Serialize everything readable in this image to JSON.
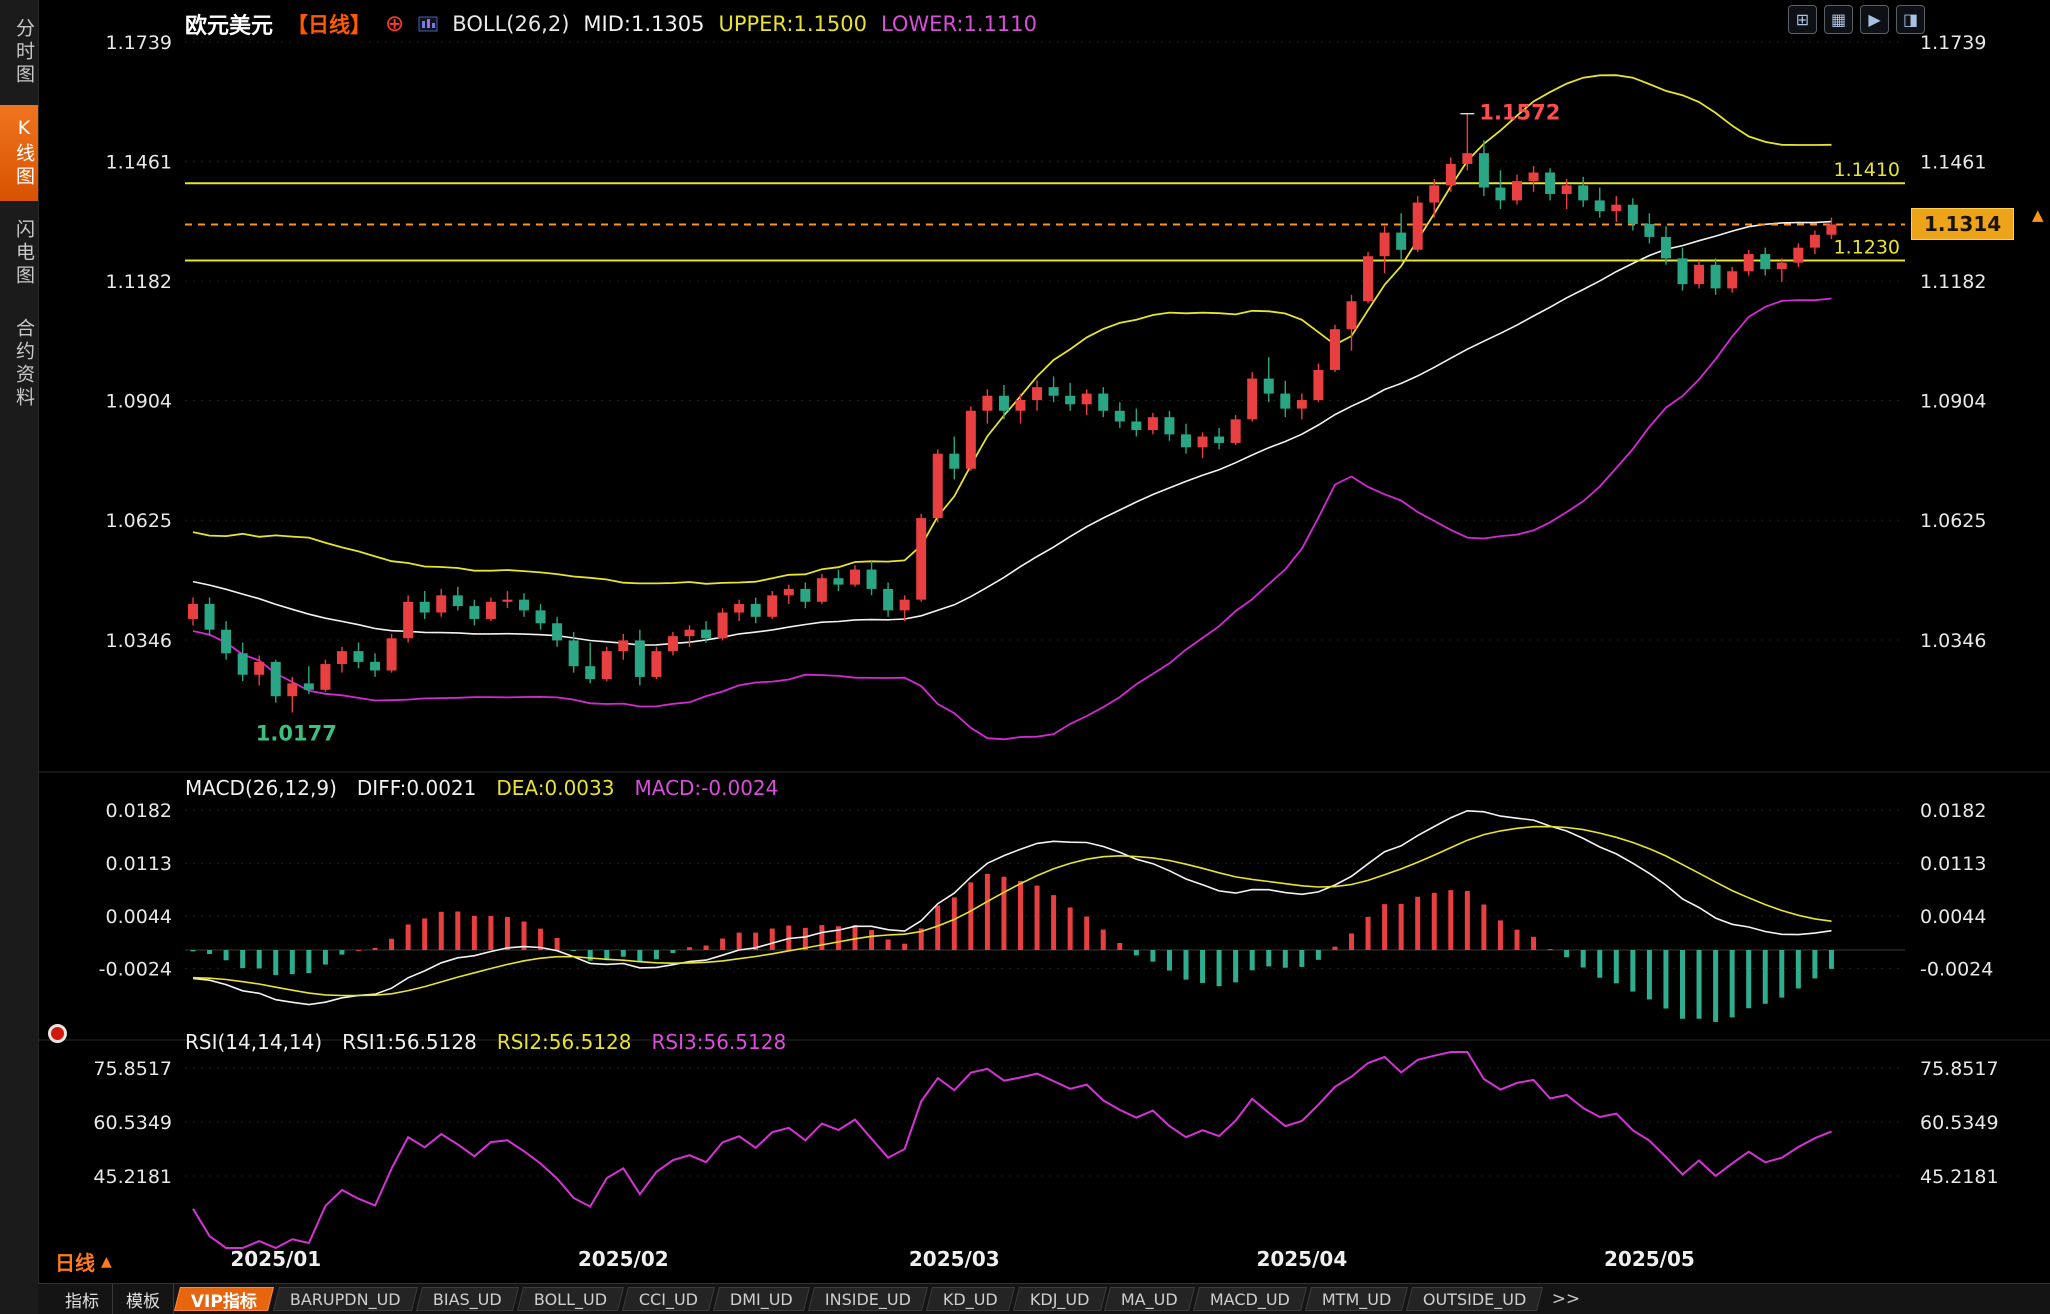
{
  "colors": {
    "background": "#000000",
    "up": "#e84040",
    "down": "#2aa685",
    "boll_mid": "#f2f2f2",
    "boll_upper": "#e8e32e",
    "boll_lower": "#d42ad4",
    "axis_text": "#e8e8e8",
    "orange": "#ff9518",
    "yellow": "#e8e32e",
    "magenta": "#d633d6",
    "macd_pos": "#e84040",
    "macd_neg": "#2fae8f",
    "diff_line": "#f2f2f2",
    "dea_line": "#e8e32e",
    "rsi_line": "#d633d6",
    "accent_orange": "#e8650f"
  },
  "sidebar": {
    "items": [
      {
        "label": "分时图",
        "selected": false
      },
      {
        "label": "K线图",
        "selected": true
      },
      {
        "label": "闪电图",
        "selected": false
      },
      {
        "label": "合约资料",
        "selected": false
      }
    ]
  },
  "header": {
    "symbol": "欧元美元",
    "period_tag": "【日线】",
    "add_icon": "⊕",
    "indicator_title": "BOLL(26,2)",
    "mid": "MID:1.1305",
    "upper": "UPPER:1.1500",
    "lower": "LOWER:1.1110"
  },
  "toolbar": {
    "icons": [
      {
        "name": "quad-view-icon",
        "glyph": "⊞"
      },
      {
        "name": "grid-view-icon",
        "glyph": "▦"
      },
      {
        "name": "playback-icon",
        "glyph": "▶"
      },
      {
        "name": "split-view-icon",
        "glyph": "◨"
      }
    ]
  },
  "price_tag": {
    "value": "1.1314"
  },
  "edge_arrow": "▲",
  "period_selector": {
    "label": "日线",
    "arrow": "▲"
  },
  "tabbar": {
    "tabs": [
      {
        "label": "指标",
        "type": "plain"
      },
      {
        "label": "模板",
        "type": "plain"
      },
      {
        "label": "VIP指标",
        "type": "selected"
      },
      {
        "label": "BARUPDN_UD",
        "type": "ind"
      },
      {
        "label": "BIAS_UD",
        "type": "ind"
      },
      {
        "label": "BOLL_UD",
        "type": "ind"
      },
      {
        "label": "CCI_UD",
        "type": "ind"
      },
      {
        "label": "DMI_UD",
        "type": "ind"
      },
      {
        "label": "INSIDE_UD",
        "type": "ind"
      },
      {
        "label": "KD_UD",
        "type": "ind"
      },
      {
        "label": "KDJ_UD",
        "type": "ind"
      },
      {
        "label": "MA_UD",
        "type": "ind"
      },
      {
        "label": "MACD_UD",
        "type": "ind"
      },
      {
        "label": "MTM_UD",
        "type": "ind"
      },
      {
        "label": "OUTSIDE_UD",
        "type": "ind"
      },
      {
        "label": ">>",
        "type": "more"
      }
    ]
  },
  "chart_data": [
    {
      "type": "candlestick",
      "title": "欧元美元 日线 (EUR/USD Daily)",
      "overlay": "BOLL(26,2)",
      "legend": {
        "boll": "BOLL(26,2)",
        "mid": "MID:1.1305",
        "upper": "UPPER:1.1500",
        "lower": "LOWER:1.1110"
      },
      "y_ticks": [
        1.1739,
        1.1461,
        1.1182,
        1.0904,
        1.0625,
        1.0346
      ],
      "x_ticks": [
        {
          "label": "2025/01",
          "index": 5
        },
        {
          "label": "2025/02",
          "index": 26
        },
        {
          "label": "2025/03",
          "index": 46
        },
        {
          "label": "2025/04",
          "index": 67
        },
        {
          "label": "2025/05",
          "index": 88
        }
      ],
      "h_lines": [
        {
          "value": 1.141,
          "label": "1.1410"
        },
        {
          "value": 1.123,
          "label": "1.1230"
        }
      ],
      "current_price": {
        "value": 1.1314,
        "label": "1.1314"
      },
      "annotations": [
        {
          "text": "1.1572",
          "index": 77,
          "price": 1.1572,
          "color": "#ff4d4d",
          "placement": "right"
        },
        {
          "text": "1.0177",
          "index": 6,
          "price": 1.0177,
          "color": "#3dbf7e",
          "placement": "below"
        }
      ],
      "boll": {
        "period": 26,
        "mult": 2
      },
      "prior_closes": [
        1.0585,
        1.057,
        1.0555,
        1.0575,
        1.056,
        1.054,
        1.0525,
        1.0535,
        1.051,
        1.0495,
        1.0505,
        1.0485,
        1.047,
        1.048,
        1.046,
        1.0445,
        1.0455,
        1.0435,
        1.0425,
        1.044,
        1.042,
        1.041,
        1.0425,
        1.0405,
        1.0395
      ],
      "candles": [
        [
          1.0395,
          1.0445,
          1.038,
          1.043
        ],
        [
          1.043,
          1.0445,
          1.0355,
          1.037
        ],
        [
          1.037,
          1.039,
          1.03,
          1.0315
        ],
        [
          1.0315,
          1.034,
          1.025,
          1.0265
        ],
        [
          1.0265,
          1.031,
          1.024,
          1.0295
        ],
        [
          1.0295,
          1.03,
          1.02,
          1.0215
        ],
        [
          1.0215,
          1.026,
          1.0177,
          1.0245
        ],
        [
          1.0245,
          1.0285,
          1.022,
          1.023
        ],
        [
          1.023,
          1.03,
          1.0225,
          1.029
        ],
        [
          1.029,
          1.033,
          1.027,
          1.032
        ],
        [
          1.032,
          1.034,
          1.028,
          1.0295
        ],
        [
          1.0295,
          1.0315,
          1.026,
          1.0275
        ],
        [
          1.0275,
          1.036,
          1.027,
          1.035
        ],
        [
          1.035,
          1.045,
          1.034,
          1.0435
        ],
        [
          1.0435,
          1.046,
          1.0395,
          1.041
        ],
        [
          1.041,
          1.0465,
          1.04,
          1.045
        ],
        [
          1.045,
          1.047,
          1.0415,
          1.0425
        ],
        [
          1.0425,
          1.044,
          1.038,
          1.0395
        ],
        [
          1.0395,
          1.0445,
          1.039,
          1.0435
        ],
        [
          1.0435,
          1.046,
          1.042,
          1.044
        ],
        [
          1.044,
          1.0455,
          1.04,
          1.0415
        ],
        [
          1.0415,
          1.043,
          1.037,
          1.0385
        ],
        [
          1.0385,
          1.04,
          1.033,
          1.0345
        ],
        [
          1.0345,
          1.0365,
          1.027,
          1.0285
        ],
        [
          1.0285,
          1.034,
          1.0245,
          1.0255
        ],
        [
          1.0255,
          1.033,
          1.025,
          1.032
        ],
        [
          1.032,
          1.036,
          1.03,
          1.0345
        ],
        [
          1.0345,
          1.037,
          1.024,
          1.026
        ],
        [
          1.026,
          1.033,
          1.0255,
          1.032
        ],
        [
          1.032,
          1.0365,
          1.031,
          1.0355
        ],
        [
          1.0355,
          1.038,
          1.033,
          1.037
        ],
        [
          1.037,
          1.039,
          1.034,
          1.035
        ],
        [
          1.035,
          1.042,
          1.0345,
          1.041
        ],
        [
          1.041,
          1.044,
          1.039,
          1.043
        ],
        [
          1.043,
          1.0445,
          1.0385,
          1.04
        ],
        [
          1.04,
          1.046,
          1.0395,
          1.045
        ],
        [
          1.045,
          1.0475,
          1.043,
          1.0465
        ],
        [
          1.0465,
          1.048,
          1.042,
          1.0435
        ],
        [
          1.0435,
          1.05,
          1.043,
          1.049
        ],
        [
          1.049,
          1.051,
          1.046,
          1.0475
        ],
        [
          1.0475,
          1.052,
          1.047,
          1.051
        ],
        [
          1.051,
          1.053,
          1.045,
          1.0465
        ],
        [
          1.0465,
          1.048,
          1.04,
          1.0415
        ],
        [
          1.0415,
          1.045,
          1.039,
          1.044
        ],
        [
          1.044,
          1.064,
          1.0435,
          1.063
        ],
        [
          1.063,
          1.079,
          1.062,
          1.078
        ],
        [
          1.078,
          1.082,
          1.072,
          1.0745
        ],
        [
          1.0745,
          1.089,
          1.074,
          1.088
        ],
        [
          1.088,
          1.093,
          1.085,
          1.0915
        ],
        [
          1.0915,
          1.094,
          1.086,
          1.088
        ],
        [
          1.088,
          1.092,
          1.085,
          1.0905
        ],
        [
          1.0905,
          1.095,
          1.088,
          1.0935
        ],
        [
          1.0935,
          1.096,
          1.09,
          1.0915
        ],
        [
          1.0915,
          1.0945,
          1.088,
          1.0895
        ],
        [
          1.0895,
          1.093,
          1.087,
          1.092
        ],
        [
          1.092,
          1.0935,
          1.0865,
          1.088
        ],
        [
          1.088,
          1.09,
          1.084,
          1.0855
        ],
        [
          1.0855,
          1.0885,
          1.082,
          1.0835
        ],
        [
          1.0835,
          1.0875,
          1.0825,
          1.0865
        ],
        [
          1.0865,
          1.088,
          1.081,
          1.0825
        ],
        [
          1.0825,
          1.085,
          1.078,
          1.0795
        ],
        [
          1.0795,
          1.083,
          1.077,
          1.082
        ],
        [
          1.082,
          1.084,
          1.079,
          1.0805
        ],
        [
          1.0805,
          1.087,
          1.08,
          1.086
        ],
        [
          1.086,
          1.097,
          1.0855,
          1.0955
        ],
        [
          1.0955,
          1.1005,
          1.09,
          1.092
        ],
        [
          1.092,
          1.095,
          1.0865,
          1.0885
        ],
        [
          1.0885,
          1.092,
          1.086,
          1.0905
        ],
        [
          1.0905,
          1.099,
          1.09,
          1.0975
        ],
        [
          1.0975,
          1.108,
          1.097,
          1.107
        ],
        [
          1.107,
          1.115,
          1.102,
          1.1135
        ],
        [
          1.1135,
          1.125,
          1.113,
          1.124
        ],
        [
          1.124,
          1.131,
          1.12,
          1.1295
        ],
        [
          1.1295,
          1.134,
          1.123,
          1.1255
        ],
        [
          1.1255,
          1.138,
          1.125,
          1.1365
        ],
        [
          1.1365,
          1.142,
          1.133,
          1.1405
        ],
        [
          1.1405,
          1.147,
          1.139,
          1.1455
        ],
        [
          1.1455,
          1.1572,
          1.144,
          1.148
        ],
        [
          1.148,
          1.151,
          1.138,
          1.14
        ],
        [
          1.14,
          1.144,
          1.135,
          1.137
        ],
        [
          1.137,
          1.143,
          1.136,
          1.1415
        ],
        [
          1.1415,
          1.145,
          1.139,
          1.1435
        ],
        [
          1.1435,
          1.1445,
          1.137,
          1.1385
        ],
        [
          1.1385,
          1.142,
          1.135,
          1.1405
        ],
        [
          1.1405,
          1.1425,
          1.1355,
          1.137
        ],
        [
          1.137,
          1.14,
          1.133,
          1.1345
        ],
        [
          1.1345,
          1.138,
          1.132,
          1.136
        ],
        [
          1.136,
          1.1375,
          1.13,
          1.1315
        ],
        [
          1.1315,
          1.134,
          1.127,
          1.1285
        ],
        [
          1.1285,
          1.131,
          1.122,
          1.1235
        ],
        [
          1.1235,
          1.126,
          1.116,
          1.1175
        ],
        [
          1.1175,
          1.123,
          1.1165,
          1.122
        ],
        [
          1.122,
          1.1235,
          1.115,
          1.1165
        ],
        [
          1.1165,
          1.1215,
          1.1155,
          1.1205
        ],
        [
          1.1205,
          1.1255,
          1.1195,
          1.1245
        ],
        [
          1.1245,
          1.126,
          1.1195,
          1.121
        ],
        [
          1.121,
          1.1235,
          1.118,
          1.1225
        ],
        [
          1.1225,
          1.127,
          1.1215,
          1.126
        ],
        [
          1.126,
          1.13,
          1.1245,
          1.129
        ],
        [
          1.129,
          1.133,
          1.128,
          1.1314
        ]
      ]
    },
    {
      "type": "macd",
      "legend": {
        "title": "MACD(26,12,9)",
        "diff": "DIFF:0.0021",
        "dea": "DEA:0.0033",
        "macd": "MACD:-0.0024"
      },
      "params": {
        "fast": 12,
        "slow": 26,
        "signal": 9
      },
      "y_ticks": [
        0.0182,
        0.0113,
        0.0044,
        -0.0024
      ]
    },
    {
      "type": "rsi",
      "legend": {
        "title": "RSI(14,14,14)",
        "rsi1": "RSI1:56.5128",
        "rsi2": "RSI2:56.5128",
        "rsi3": "RSI3:56.5128"
      },
      "params": {
        "period": 14
      },
      "y_ticks": [
        75.8517,
        60.5349,
        45.2181
      ]
    }
  ]
}
